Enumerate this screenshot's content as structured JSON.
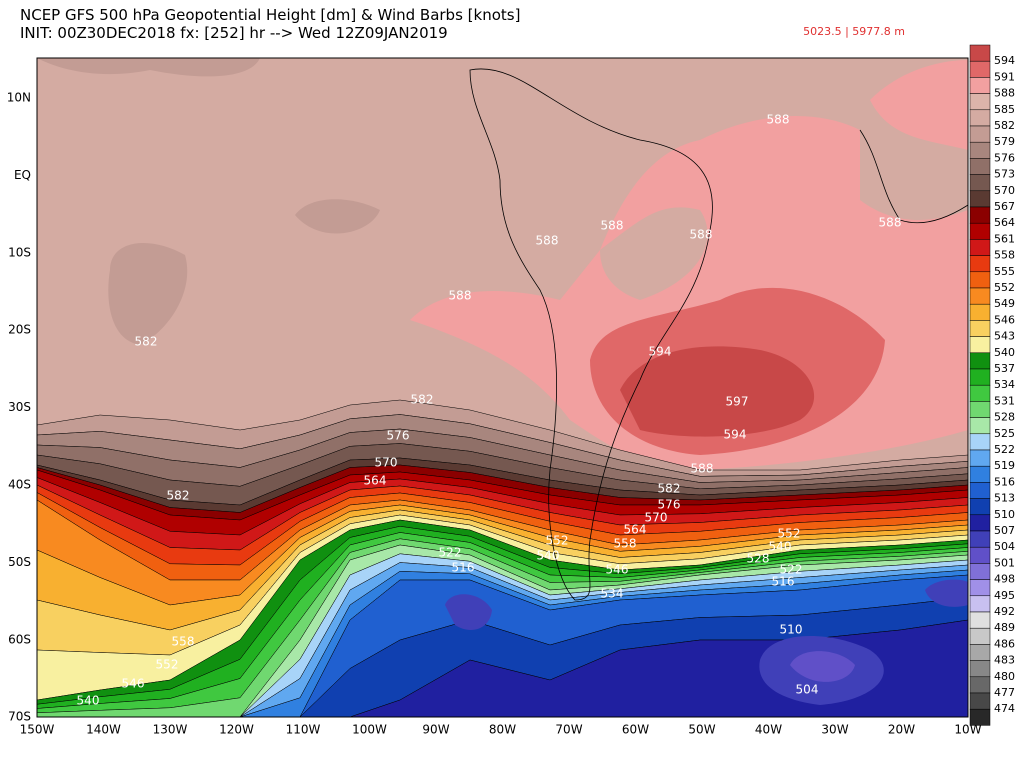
{
  "header": {
    "title": "NCEP GFS 500 hPa Geopotential Height [dm] & Wind Barbs [knots]",
    "subtitle": "INIT: 00Z30DEC2018 fx: [252] hr --> Wed 12Z09JAN2019",
    "range_text": "5023.5 | 5977.8 m"
  },
  "axes": {
    "lat_labels": [
      "10N",
      "EQ",
      "10S",
      "20S",
      "30S",
      "40S",
      "50S",
      "60S",
      "70S"
    ],
    "lon_labels": [
      "150W",
      "140W",
      "130W",
      "120W",
      "110W",
      "100W",
      "90W",
      "80W",
      "70W",
      "60W",
      "50W",
      "40W",
      "30W",
      "20W",
      "10W"
    ]
  },
  "colorbar": {
    "labels": [
      594,
      591,
      588,
      585,
      582,
      579,
      576,
      573,
      570,
      567,
      564,
      561,
      558,
      555,
      552,
      549,
      546,
      543,
      540,
      537,
      534,
      531,
      528,
      525,
      522,
      519,
      516,
      513,
      510,
      507,
      504,
      501,
      498,
      495,
      492,
      489,
      486,
      483,
      480,
      477,
      474
    ],
    "colors": [
      "#c84848",
      "#e06868",
      "#f2a0a0",
      "#dcb4aa",
      "#d4aba2",
      "#c39c94",
      "#a8867e",
      "#907068",
      "#755850",
      "#5a3a32",
      "#8b0000",
      "#b00000",
      "#d01818",
      "#e83a10",
      "#f06010",
      "#f88a20",
      "#f8b030",
      "#f8d060",
      "#f8f0a0",
      "#109010",
      "#20b020",
      "#40c840",
      "#70d870",
      "#a8e8a8",
      "#a8d4f8",
      "#60a8f0",
      "#3080e0",
      "#2060d0",
      "#1040b0",
      "#2020a0",
      "#4040b8",
      "#6050c8",
      "#8070d8",
      "#a090e8",
      "#c8c0f0",
      "#e0e0e0",
      "#c8c8c8",
      "#a8a8a8",
      "#888888",
      "#686868",
      "#484848",
      "#282828"
    ]
  },
  "contour_labels": [
    "582",
    "588",
    "588",
    "588",
    "588",
    "588",
    "588",
    "594",
    "597",
    "594",
    "588",
    "582",
    "576",
    "570",
    "564",
    "582",
    "582",
    "576",
    "570",
    "564",
    "558",
    "552",
    "540",
    "546",
    "534",
    "522",
    "516",
    "552",
    "540",
    "528",
    "522",
    "516",
    "510",
    "504",
    "558",
    "552",
    "546",
    "540"
  ]
}
